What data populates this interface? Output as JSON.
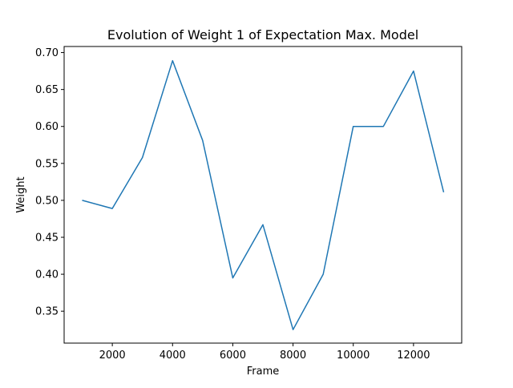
{
  "chart_data": {
    "type": "line",
    "title": "Evolution of Weight 1 of Expectation Max. Model",
    "xlabel": "Frame",
    "ylabel": "Weight",
    "xlim": [
      400,
      13600
    ],
    "ylim": [
      0.3068,
      0.7082
    ],
    "xticks": [
      2000,
      4000,
      6000,
      8000,
      10000,
      12000
    ],
    "yticks": [
      0.35,
      0.4,
      0.45,
      0.5,
      0.55,
      0.6,
      0.65,
      0.7
    ],
    "xtick_labels": [
      "2000",
      "4000",
      "6000",
      "8000",
      "10000",
      "12000"
    ],
    "ytick_labels": [
      "0.35",
      "0.40",
      "0.45",
      "0.50",
      "0.55",
      "0.60",
      "0.65",
      "0.70"
    ],
    "grid": false,
    "line_color": "#1f77b4",
    "series": [
      {
        "x": [
          1000,
          2000,
          3000,
          4000,
          5000,
          6000,
          7000,
          8000,
          9000,
          10000,
          11000,
          12000,
          13000
        ],
        "y": [
          0.5,
          0.489,
          0.558,
          0.689,
          0.581,
          0.395,
          0.467,
          0.325,
          0.4,
          0.6,
          0.6,
          0.675,
          0.511
        ]
      }
    ]
  }
}
